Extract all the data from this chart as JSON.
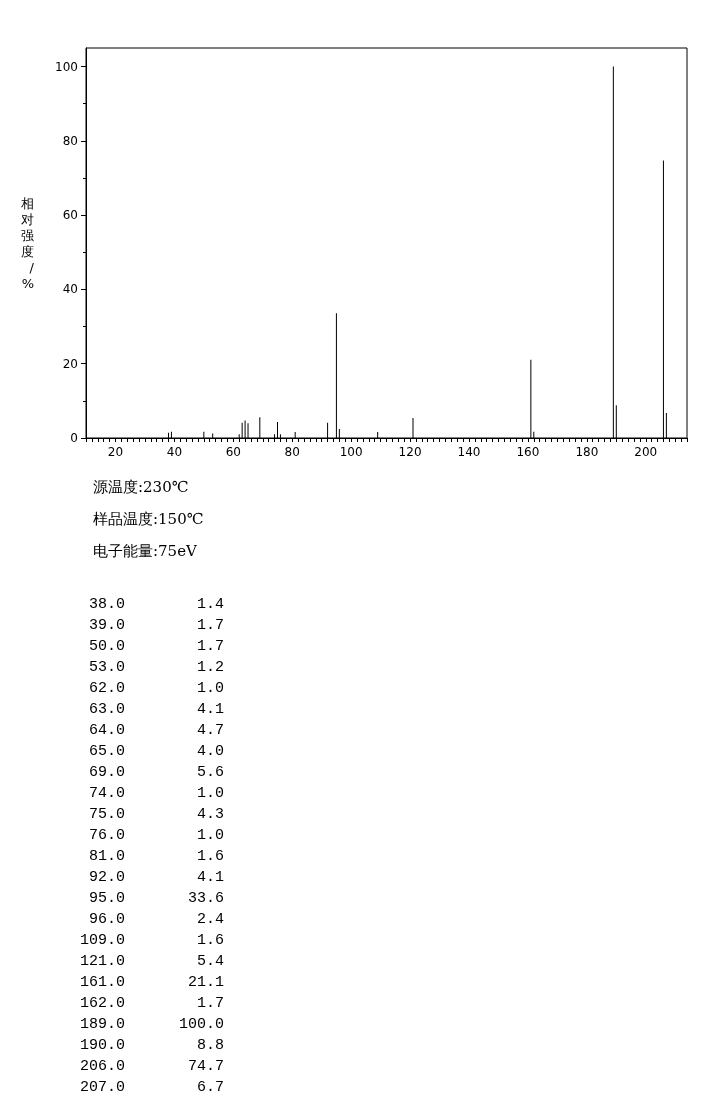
{
  "chart_data": {
    "type": "bar",
    "ylabel": "相对强度/%",
    "x": [
      38,
      39,
      50,
      53,
      62,
      63,
      64,
      65,
      69,
      74,
      75,
      76,
      81,
      92,
      95,
      96,
      109,
      121,
      161,
      162,
      189,
      190,
      206,
      207
    ],
    "values": [
      1.4,
      1.7,
      1.7,
      1.2,
      1.0,
      4.1,
      4.7,
      4.0,
      5.6,
      1.0,
      4.3,
      1.0,
      1.6,
      4.1,
      33.6,
      2.4,
      1.6,
      5.4,
      21.1,
      1.7,
      100.0,
      8.8,
      74.7,
      6.7
    ],
    "color": "#000000",
    "xlim": [
      10,
      214
    ],
    "xticks": [
      20,
      40,
      60,
      80,
      100,
      120,
      140,
      160,
      180,
      200
    ],
    "ylim": [
      0,
      105
    ],
    "yticks": [
      0,
      20,
      40,
      60,
      80,
      100
    ],
    "annotations": [
      "源温度:230℃",
      "样品温度:150℃",
      "电子能量:75eV",
      " 38.0        1.4",
      " 39.0        1.7",
      " 50.0        1.7",
      " 53.0        1.2",
      " 62.0        1.0",
      " 63.0        4.1",
      " 64.0        4.7",
      " 65.0        4.0",
      " 69.0        5.6",
      " 74.0        1.0",
      " 75.0        4.3",
      " 76.0        1.0",
      " 81.0        1.6",
      " 92.0        4.1",
      " 95.0       33.6",
      " 96.0        2.4",
      "109.0        1.6",
      "121.0        5.4",
      "161.0       21.1",
      "162.0        1.7",
      "189.0      100.0",
      "190.0        8.8",
      "206.0       74.7",
      "207.0        6.7"
    ]
  }
}
